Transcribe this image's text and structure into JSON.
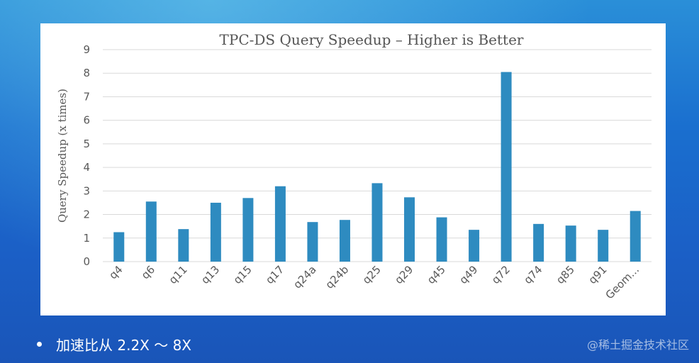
{
  "chart_data": {
    "type": "bar",
    "title": "TPC-DS Query Speedup – Higher is Better",
    "xlabel": "",
    "ylabel": "Query Speedup (x times)",
    "ylim": [
      0,
      9
    ],
    "yticks": [
      0,
      1,
      2,
      3,
      4,
      5,
      6,
      7,
      8,
      9
    ],
    "grid": true,
    "bar_color": "#2e8bc0",
    "categories": [
      "q4",
      "q6",
      "q11",
      "q13",
      "q15",
      "q17",
      "q24a",
      "q24b",
      "q25",
      "q29",
      "q45",
      "q49",
      "q72",
      "q74",
      "q85",
      "q91",
      "Geom..."
    ],
    "values": [
      1.25,
      2.55,
      1.38,
      2.5,
      2.7,
      3.2,
      1.68,
      1.77,
      3.33,
      2.73,
      1.88,
      1.35,
      8.05,
      1.6,
      1.53,
      1.35,
      2.15
    ]
  },
  "slide": {
    "bullet_text": "加速比从 2.2X ～ 8X",
    "watermark": "@稀土掘金技术社区"
  }
}
